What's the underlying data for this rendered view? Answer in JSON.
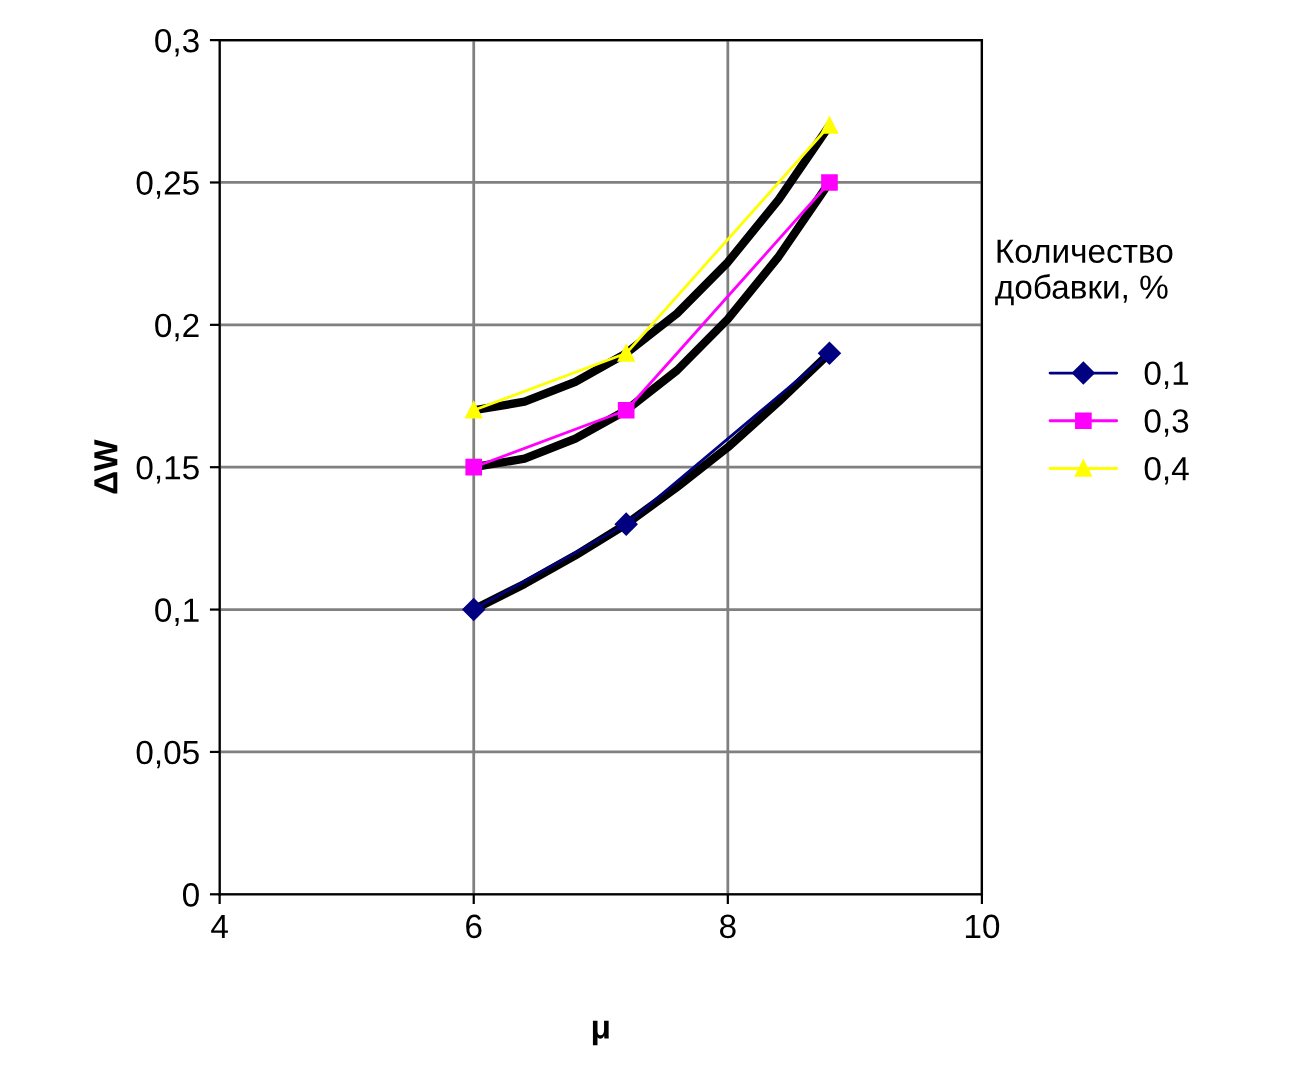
{
  "chart_data": {
    "type": "line",
    "xlabel": "μ",
    "ylabel": "ΔW",
    "legend_title": "Количество добавки, %",
    "legend": "right",
    "grid": true,
    "xlim": [
      4,
      10
    ],
    "xticks": [
      4,
      6,
      8,
      10
    ],
    "ylim": [
      0,
      0.3
    ],
    "yticks": [
      0,
      {
        "value": 0.05,
        "label": "0,05"
      },
      {
        "value": 0.1,
        "label": "0,1"
      },
      {
        "value": 0.15,
        "label": "0,15"
      },
      {
        "value": 0.2,
        "label": "0,2"
      },
      {
        "value": 0.25,
        "label": "0,25"
      },
      {
        "value": 0.3,
        "label": "0,3"
      }
    ],
    "x": [
      6,
      7.2,
      8.8
    ],
    "series": [
      {
        "type": "line",
        "color": "#000000",
        "x": [
          6,
          6.4,
          6.8,
          7.2,
          7.6,
          8.0,
          8.4,
          8.8
        ],
        "values": [
          0.1,
          0.109,
          0.119,
          0.13,
          0.143,
          0.157,
          0.173,
          0.19
        ]
      },
      {
        "type": "line",
        "color": "#000000",
        "x": [
          6,
          6.4,
          6.8,
          7.2,
          7.6,
          8.0,
          8.4,
          8.8
        ],
        "values": [
          0.15,
          0.153,
          0.16,
          0.17,
          0.184,
          0.202,
          0.224,
          0.25
        ]
      },
      {
        "type": "line",
        "color": "#000000",
        "x": [
          6,
          6.4,
          6.8,
          7.2,
          7.6,
          8.0,
          8.4,
          8.8
        ],
        "values": [
          0.17,
          0.173,
          0.18,
          0.19,
          0.204,
          0.222,
          0.244,
          0.27
        ]
      },
      {
        "name": "0,1",
        "color": "#000080",
        "marker": "diamond",
        "values": [
          0.1,
          0.13,
          0.19
        ]
      },
      {
        "name": "0,3",
        "color": "#ff00ff",
        "marker": "square",
        "values": [
          0.15,
          0.17,
          0.25
        ]
      },
      {
        "name": "0,4",
        "color": "#ffff00",
        "marker": "triangle",
        "values": [
          0.17,
          0.19,
          0.27
        ]
      }
    ]
  }
}
